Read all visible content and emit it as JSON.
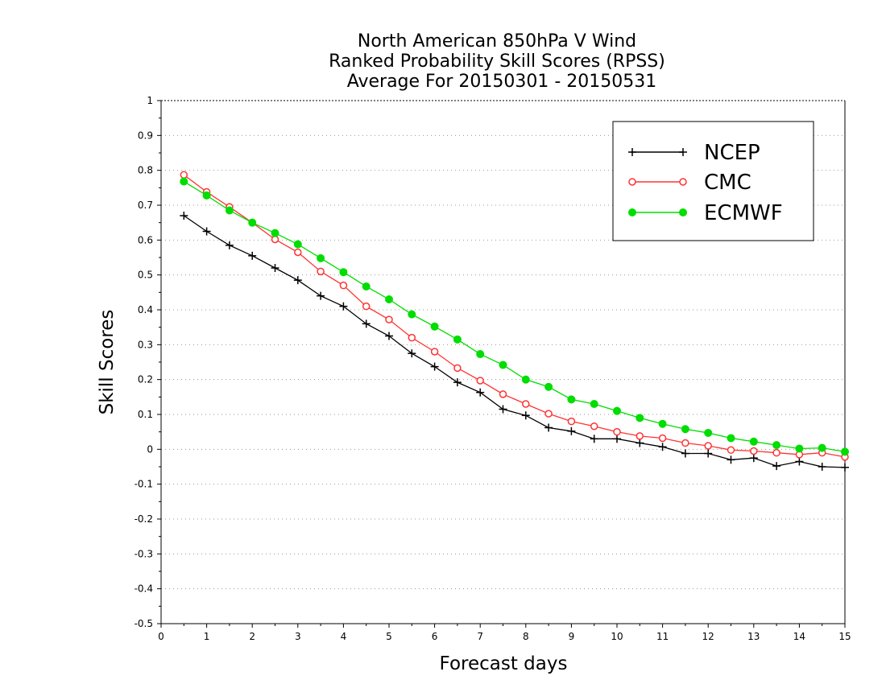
{
  "chart_data": {
    "type": "line",
    "title": [
      "North American 850hPa V Wind",
      "Ranked Probability Skill Scores (RPSS)",
      "Average For 20150301 - 20150531"
    ],
    "xlabel": "Forecast days",
    "ylabel": "Skill Scores",
    "xlim": [
      0,
      15
    ],
    "ylim": [
      -0.5,
      1
    ],
    "xticks": [
      0,
      1,
      2,
      3,
      4,
      5,
      6,
      7,
      8,
      9,
      10,
      11,
      12,
      13,
      14,
      15
    ],
    "yticks": [
      -0.5,
      -0.4,
      -0.3,
      -0.2,
      -0.1,
      0,
      0.1,
      0.2,
      0.3,
      0.4,
      0.5,
      0.6,
      0.7,
      0.8,
      0.9,
      1
    ],
    "grid": true,
    "legend_position": "top-right",
    "x": [
      0.5,
      1,
      1.5,
      2,
      2.5,
      3,
      3.5,
      4,
      4.5,
      5,
      5.5,
      6,
      6.5,
      7,
      7.5,
      8,
      8.5,
      9,
      9.5,
      10,
      10.5,
      11,
      11.5,
      12,
      12.5,
      13,
      13.5,
      14,
      14.5,
      15
    ],
    "series": [
      {
        "name": "NCEP",
        "color": "#000000",
        "marker": "plus",
        "values": [
          0.67,
          0.625,
          0.585,
          0.555,
          0.52,
          0.485,
          0.44,
          0.41,
          0.36,
          0.325,
          0.275,
          0.237,
          0.192,
          0.163,
          0.115,
          0.097,
          0.062,
          0.052,
          0.03,
          0.03,
          0.018,
          0.007,
          -0.012,
          -0.012,
          -0.03,
          -0.025,
          -0.048,
          -0.035,
          -0.05,
          -0.052
        ]
      },
      {
        "name": "CMC",
        "color": "#ff3333",
        "marker": "open-circle",
        "values": [
          0.787,
          0.738,
          0.695,
          0.65,
          0.602,
          0.565,
          0.51,
          0.47,
          0.41,
          0.372,
          0.32,
          0.28,
          0.233,
          0.197,
          0.158,
          0.13,
          0.102,
          0.08,
          0.066,
          0.05,
          0.038,
          0.032,
          0.018,
          0.01,
          -0.002,
          -0.005,
          -0.01,
          -0.015,
          -0.01,
          -0.022
        ]
      },
      {
        "name": "ECMWF",
        "color": "#00dd00",
        "marker": "filled-circle",
        "values": [
          0.768,
          0.728,
          0.685,
          0.65,
          0.62,
          0.588,
          0.548,
          0.508,
          0.467,
          0.43,
          0.387,
          0.352,
          0.315,
          0.273,
          0.242,
          0.2,
          0.179,
          0.143,
          0.13,
          0.11,
          0.09,
          0.073,
          0.058,
          0.047,
          0.032,
          0.022,
          0.012,
          0.002,
          0.004,
          -0.007
        ]
      }
    ]
  }
}
